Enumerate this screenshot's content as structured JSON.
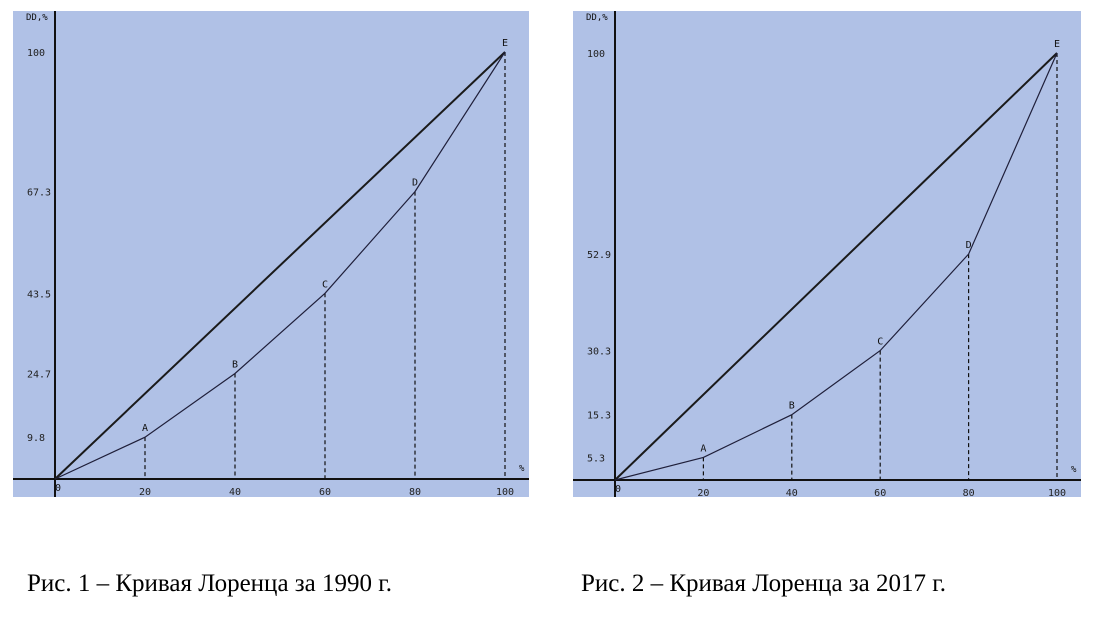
{
  "chart_data": [
    {
      "type": "line",
      "caption": "Рис. 1 – Кривая Лоренца за 1990 г.",
      "ylabel": "DD,%",
      "xlabel": "%",
      "origin_label": "0",
      "xlim": [
        0,
        100
      ],
      "ylim": [
        0,
        100
      ],
      "x_ticks": [
        "20",
        "40",
        "60",
        "80",
        "100"
      ],
      "y_ticks": [
        "9.8",
        "24.7",
        "43.5",
        "67.3",
        "100"
      ],
      "equality_line": [
        [
          0,
          0
        ],
        [
          100,
          100
        ]
      ],
      "series": [
        {
          "points": [
            {
              "label": "A",
              "x": 20,
              "y": 9.8
            },
            {
              "label": "B",
              "x": 40,
              "y": 24.7
            },
            {
              "label": "C",
              "x": 60,
              "y": 43.5
            },
            {
              "label": "D",
              "x": 80,
              "y": 67.3
            },
            {
              "label": "E",
              "x": 100,
              "y": 100
            }
          ]
        }
      ],
      "grid": false
    },
    {
      "type": "line",
      "caption": "Рис. 2 – Кривая Лоренца за 2017 г.",
      "ylabel": "DD,%",
      "xlabel": "%",
      "origin_label": "0",
      "xlim": [
        0,
        100
      ],
      "ylim": [
        0,
        100
      ],
      "x_ticks": [
        "20",
        "40",
        "60",
        "80",
        "100"
      ],
      "y_ticks": [
        "5.3",
        "15.3",
        "30.3",
        "52.9",
        "100"
      ],
      "equality_line": [
        [
          0,
          0
        ],
        [
          100,
          100
        ]
      ],
      "series": [
        {
          "points": [
            {
              "label": "A",
              "x": 20,
              "y": 5.3
            },
            {
              "label": "B",
              "x": 40,
              "y": 15.3
            },
            {
              "label": "C",
              "x": 60,
              "y": 30.3
            },
            {
              "label": "D",
              "x": 80,
              "y": 52.9
            },
            {
              "label": "E",
              "x": 100,
              "y": 100
            }
          ]
        }
      ],
      "grid": false
    }
  ]
}
